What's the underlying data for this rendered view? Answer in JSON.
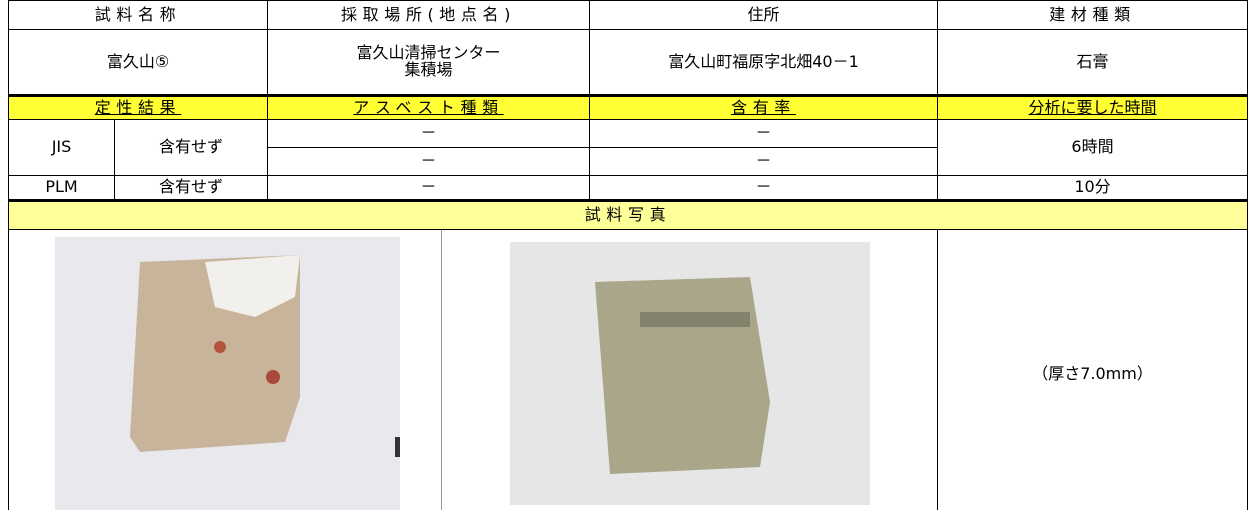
{
  "table": {
    "header": [
      "試料名称",
      "採取場所(地点名)",
      "住所",
      "建材種類"
    ],
    "info": {
      "name": "富久山⑤",
      "location": [
        "富久山清掃センター",
        "集積場"
      ],
      "address": "富久山町福原字北畑40－1",
      "material": "石膏"
    },
    "result_header": [
      "定性結果",
      "アスベスト種類",
      "含有率",
      "分析に要した時間"
    ],
    "results": [
      {
        "method": "JIS",
        "result": "含有せず",
        "asbestos": [
          "－",
          "－"
        ],
        "rate": [
          "－",
          "－"
        ],
        "time": "6時間"
      },
      {
        "method": "PLM",
        "result": "含有せず",
        "asbestos": [
          "－"
        ],
        "rate": [
          "－"
        ],
        "time": "10分"
      }
    ],
    "photo_header": "試料写真",
    "note": "（厚さ7.0mm）"
  }
}
